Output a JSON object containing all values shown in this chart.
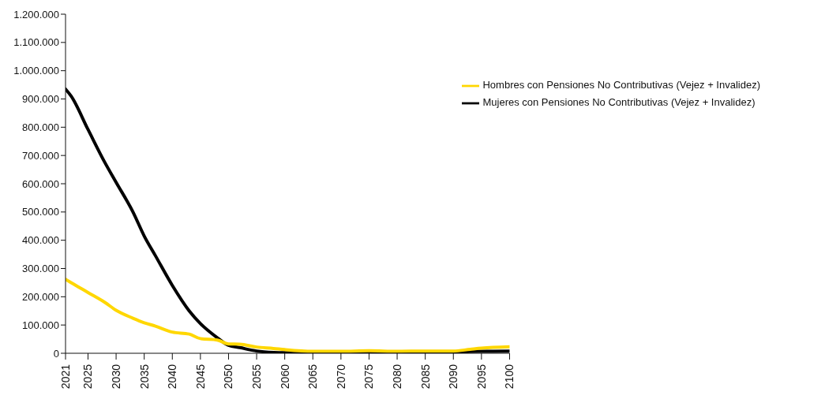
{
  "chart_data": {
    "type": "line",
    "x": [
      2021,
      2022,
      2025,
      2028,
      2030,
      2033,
      2035,
      2037,
      2040,
      2043,
      2045,
      2048,
      2050,
      2052,
      2055,
      2058,
      2060,
      2065,
      2070,
      2075,
      2080,
      2085,
      2090,
      2093,
      2095,
      2100
    ],
    "series": [
      {
        "name": "Mujeres con Pensiones No Contributivas (Vejez + Invalidez)",
        "color": "#000000",
        "values": [
          935000,
          910000,
          792000,
          675000,
          605000,
          500000,
          415000,
          345000,
          240000,
          150000,
          105000,
          55000,
          28000,
          20000,
          8000,
          3000,
          2000,
          3000,
          4000,
          4000,
          5000,
          5000,
          5000,
          6000,
          7000,
          8000
        ]
      },
      {
        "name": "Hombres con Pensiones No Contributivas (Vejez + Invalidez)",
        "color": "#ffd700",
        "values": [
          262000,
          250000,
          215000,
          180000,
          152000,
          124000,
          108000,
          96000,
          75000,
          68000,
          52000,
          47000,
          33000,
          32000,
          22000,
          17000,
          13000,
          7000,
          7000,
          9000,
          7000,
          8000,
          8000,
          14000,
          18000,
          23000
        ]
      }
    ],
    "xlim": [
      2021,
      2100
    ],
    "xticks": [
      2021,
      2025,
      2030,
      2035,
      2040,
      2045,
      2050,
      2055,
      2060,
      2065,
      2070,
      2075,
      2080,
      2085,
      2090,
      2095,
      2100
    ],
    "ylim": [
      0,
      1200000
    ],
    "yticks": [
      0,
      {
        "value": 100000,
        "label": "100.000"
      },
      {
        "value": 200000,
        "label": "200.000"
      },
      {
        "value": 300000,
        "label": "300.000"
      },
      {
        "value": 400000,
        "label": "400.000"
      },
      {
        "value": 500000,
        "label": "500.000"
      },
      {
        "value": 600000,
        "label": "600.000"
      },
      {
        "value": 700000,
        "label": "700.000"
      },
      {
        "value": 800000,
        "label": "800.000"
      },
      {
        "value": 900000,
        "label": "900.000"
      },
      {
        "value": 1000000,
        "label": "1.000.000"
      },
      {
        "value": 1100000,
        "label": "1.100.000"
      },
      {
        "value": 1200000,
        "label": "1.200.000"
      }
    ],
    "grid": false,
    "legend": "top right",
    "marker": "none",
    "line_style": "solid"
  }
}
